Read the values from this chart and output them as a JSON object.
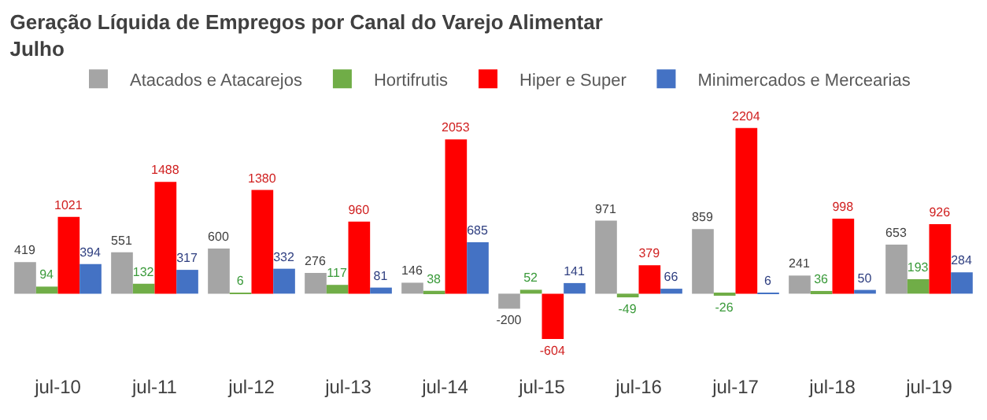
{
  "chart_data": {
    "type": "bar",
    "title": "Geração Líquida de Empregos por Canal do Varejo Alimentar",
    "subtitle": "Julho",
    "categories": [
      "jul-10",
      "jul-11",
      "jul-12",
      "jul-13",
      "jul-14",
      "jul-15",
      "jul-16",
      "jul-17",
      "jul-18",
      "jul-19"
    ],
    "series": [
      {
        "name": "Atacados e Atacarejos",
        "color": "#a5a5a5",
        "values": [
          419,
          551,
          600,
          276,
          146,
          -200,
          971,
          859,
          241,
          653
        ]
      },
      {
        "name": "Hortifrutis",
        "color": "#70ad47",
        "values": [
          94,
          132,
          6,
          117,
          38,
          52,
          -49,
          -26,
          36,
          193
        ]
      },
      {
        "name": "Hiper e Super",
        "color": "#ff0000",
        "values": [
          1021,
          1488,
          1380,
          960,
          2053,
          -604,
          379,
          2204,
          998,
          926
        ]
      },
      {
        "name": "Minimercados e Mercearias",
        "color": "#4472c4",
        "values": [
          394,
          317,
          332,
          81,
          685,
          141,
          66,
          6,
          50,
          284
        ]
      }
    ],
    "data_labels": true,
    "legend": "top",
    "grid": false
  }
}
